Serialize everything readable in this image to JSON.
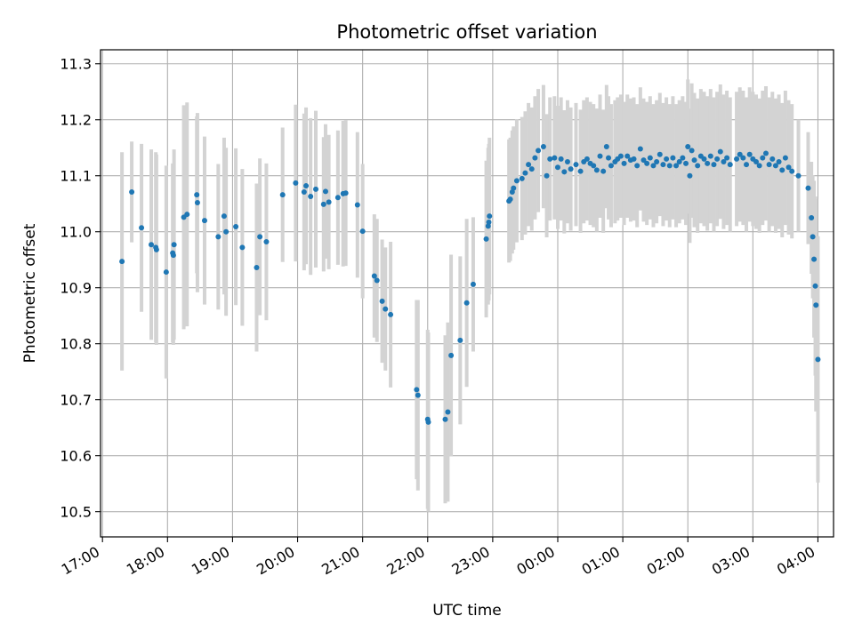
{
  "chart_data": {
    "type": "scatter",
    "title": "Photometric offset variation",
    "xlabel": "UTC time",
    "ylabel": "Photometric offset",
    "x_unit": "hours UTC (17.0 = 17:00, 24.0 = 00:00 next day, 28.0 = 04:00)",
    "xlim": [
      16.97,
      28.24
    ],
    "ylim": [
      10.455,
      11.325
    ],
    "grid": true,
    "x_ticks": [
      17,
      18,
      19,
      20,
      21,
      22,
      23,
      24,
      25,
      26,
      27,
      28
    ],
    "x_tick_labels": [
      "17:00",
      "18:00",
      "19:00",
      "20:00",
      "21:00",
      "22:00",
      "23:00",
      "00:00",
      "01:00",
      "02:00",
      "03:00",
      "04:00"
    ],
    "y_ticks": [
      10.5,
      10.6,
      10.7,
      10.8,
      10.9,
      11.0,
      11.1,
      11.2,
      11.3
    ],
    "y_tick_labels": [
      "10.5",
      "10.6",
      "10.7",
      "10.8",
      "10.9",
      "11.0",
      "11.1",
      "11.2",
      "11.3"
    ],
    "colors": {
      "points": "#1f77b4",
      "error_bars": "#d3d3d3",
      "grid": "#b0b0b0"
    },
    "series": [
      {
        "columns": [
          "x",
          "y",
          "y_error"
        ],
        "points": [
          [
            17.3,
            10.947,
            0.195
          ],
          [
            17.45,
            11.071,
            0.09
          ],
          [
            17.6,
            11.007,
            0.15
          ],
          [
            17.75,
            10.977,
            0.17
          ],
          [
            17.82,
            10.972,
            0.17
          ],
          [
            17.83,
            10.968,
            0.17
          ],
          [
            17.98,
            10.928,
            0.19
          ],
          [
            18.08,
            10.962,
            0.16
          ],
          [
            18.09,
            10.958,
            0.16
          ],
          [
            18.1,
            10.977,
            0.17
          ],
          [
            18.25,
            11.026,
            0.2
          ],
          [
            18.3,
            11.031,
            0.2
          ],
          [
            18.45,
            11.066,
            0.14
          ],
          [
            18.46,
            11.052,
            0.16
          ],
          [
            18.57,
            11.02,
            0.15
          ],
          [
            18.78,
            10.991,
            0.13
          ],
          [
            18.87,
            11.028,
            0.14
          ],
          [
            18.9,
            11.0,
            0.15
          ],
          [
            19.05,
            11.009,
            0.14
          ],
          [
            19.15,
            10.972,
            0.14
          ],
          [
            19.37,
            10.936,
            0.15
          ],
          [
            19.42,
            10.991,
            0.14
          ],
          [
            19.52,
            10.982,
            0.14
          ],
          [
            19.77,
            11.066,
            0.12
          ],
          [
            19.97,
            11.087,
            0.14
          ],
          [
            20.1,
            11.071,
            0.14
          ],
          [
            20.13,
            11.082,
            0.14
          ],
          [
            20.2,
            11.063,
            0.14
          ],
          [
            20.28,
            11.076,
            0.14
          ],
          [
            20.4,
            11.049,
            0.12
          ],
          [
            20.43,
            11.072,
            0.12
          ],
          [
            20.48,
            11.053,
            0.12
          ],
          [
            20.62,
            11.061,
            0.12
          ],
          [
            20.7,
            11.068,
            0.13
          ],
          [
            20.74,
            11.069,
            0.13
          ],
          [
            20.92,
            11.048,
            0.13
          ],
          [
            21.0,
            11.001,
            0.12
          ],
          [
            21.18,
            10.921,
            0.11
          ],
          [
            21.22,
            10.913,
            0.11
          ],
          [
            21.3,
            10.876,
            0.11
          ],
          [
            21.35,
            10.862,
            0.11
          ],
          [
            21.43,
            10.852,
            0.13
          ],
          [
            21.83,
            10.718,
            0.16
          ],
          [
            21.85,
            10.708,
            0.17
          ],
          [
            22.0,
            10.665,
            0.16
          ],
          [
            22.01,
            10.66,
            0.16
          ],
          [
            22.27,
            10.665,
            0.15
          ],
          [
            22.31,
            10.678,
            0.16
          ],
          [
            22.36,
            10.779,
            0.18
          ],
          [
            22.5,
            10.806,
            0.15
          ],
          [
            22.6,
            10.873,
            0.15
          ],
          [
            22.7,
            10.906,
            0.12
          ],
          [
            22.9,
            10.987,
            0.14
          ],
          [
            22.93,
            11.01,
            0.14
          ],
          [
            22.94,
            11.017,
            0.14
          ],
          [
            22.95,
            11.028,
            0.14
          ],
          [
            23.25,
            11.055,
            0.11
          ],
          [
            23.27,
            11.058,
            0.11
          ],
          [
            23.3,
            11.071,
            0.11
          ],
          [
            23.32,
            11.078,
            0.11
          ],
          [
            23.37,
            11.091,
            0.11
          ],
          [
            23.45,
            11.095,
            0.11
          ],
          [
            23.5,
            11.105,
            0.11
          ],
          [
            23.55,
            11.12,
            0.11
          ],
          [
            23.6,
            11.112,
            0.11
          ],
          [
            23.65,
            11.132,
            0.11
          ],
          [
            23.7,
            11.145,
            0.11
          ],
          [
            23.78,
            11.152,
            0.11
          ],
          [
            23.83,
            11.1,
            0.11
          ],
          [
            23.88,
            11.13,
            0.11
          ],
          [
            23.95,
            11.132,
            0.11
          ],
          [
            24.0,
            11.115,
            0.11
          ],
          [
            24.05,
            11.13,
            0.11
          ],
          [
            24.1,
            11.107,
            0.11
          ],
          [
            24.15,
            11.125,
            0.11
          ],
          [
            24.2,
            11.112,
            0.11
          ],
          [
            24.28,
            11.12,
            0.11
          ],
          [
            24.35,
            11.108,
            0.11
          ],
          [
            24.4,
            11.125,
            0.11
          ],
          [
            24.45,
            11.13,
            0.11
          ],
          [
            24.5,
            11.122,
            0.11
          ],
          [
            24.55,
            11.118,
            0.11
          ],
          [
            24.6,
            11.11,
            0.11
          ],
          [
            24.65,
            11.135,
            0.11
          ],
          [
            24.7,
            11.108,
            0.11
          ],
          [
            24.75,
            11.152,
            0.11
          ],
          [
            24.78,
            11.132,
            0.11
          ],
          [
            24.82,
            11.118,
            0.11
          ],
          [
            24.88,
            11.125,
            0.11
          ],
          [
            24.92,
            11.13,
            0.11
          ],
          [
            24.97,
            11.135,
            0.11
          ],
          [
            25.02,
            11.122,
            0.11
          ],
          [
            25.07,
            11.135,
            0.11
          ],
          [
            25.12,
            11.128,
            0.11
          ],
          [
            25.17,
            11.13,
            0.11
          ],
          [
            25.22,
            11.118,
            0.11
          ],
          [
            25.27,
            11.148,
            0.11
          ],
          [
            25.32,
            11.128,
            0.11
          ],
          [
            25.37,
            11.122,
            0.11
          ],
          [
            25.42,
            11.132,
            0.11
          ],
          [
            25.47,
            11.118,
            0.11
          ],
          [
            25.52,
            11.125,
            0.11
          ],
          [
            25.57,
            11.138,
            0.11
          ],
          [
            25.62,
            11.12,
            0.11
          ],
          [
            25.67,
            11.13,
            0.11
          ],
          [
            25.72,
            11.118,
            0.11
          ],
          [
            25.77,
            11.132,
            0.11
          ],
          [
            25.82,
            11.118,
            0.11
          ],
          [
            25.87,
            11.125,
            0.11
          ],
          [
            25.92,
            11.132,
            0.11
          ],
          [
            25.97,
            11.122,
            0.11
          ],
          [
            26.0,
            11.152,
            0.12
          ],
          [
            26.03,
            11.1,
            0.12
          ],
          [
            26.06,
            11.145,
            0.12
          ],
          [
            26.1,
            11.128,
            0.12
          ],
          [
            26.15,
            11.118,
            0.12
          ],
          [
            26.2,
            11.135,
            0.12
          ],
          [
            26.25,
            11.13,
            0.12
          ],
          [
            26.3,
            11.122,
            0.12
          ],
          [
            26.35,
            11.135,
            0.12
          ],
          [
            26.4,
            11.12,
            0.12
          ],
          [
            26.45,
            11.13,
            0.12
          ],
          [
            26.5,
            11.143,
            0.12
          ],
          [
            26.55,
            11.125,
            0.12
          ],
          [
            26.6,
            11.132,
            0.12
          ],
          [
            26.65,
            11.12,
            0.12
          ],
          [
            26.75,
            11.13,
            0.12
          ],
          [
            26.8,
            11.138,
            0.12
          ],
          [
            26.85,
            11.132,
            0.12
          ],
          [
            26.9,
            11.12,
            0.12
          ],
          [
            26.95,
            11.138,
            0.12
          ],
          [
            27.0,
            11.13,
            0.12
          ],
          [
            27.05,
            11.125,
            0.12
          ],
          [
            27.1,
            11.118,
            0.12
          ],
          [
            27.15,
            11.132,
            0.12
          ],
          [
            27.2,
            11.14,
            0.12
          ],
          [
            27.25,
            11.12,
            0.12
          ],
          [
            27.3,
            11.13,
            0.12
          ],
          [
            27.35,
            11.118,
            0.12
          ],
          [
            27.4,
            11.125,
            0.12
          ],
          [
            27.45,
            11.11,
            0.12
          ],
          [
            27.5,
            11.132,
            0.12
          ],
          [
            27.55,
            11.115,
            0.12
          ],
          [
            27.6,
            11.108,
            0.12
          ],
          [
            27.7,
            11.1,
            0.1
          ],
          [
            27.85,
            11.078,
            0.1
          ],
          [
            27.9,
            11.025,
            0.1
          ],
          [
            27.92,
            10.991,
            0.11
          ],
          [
            27.94,
            10.951,
            0.14
          ],
          [
            27.96,
            10.903,
            0.16
          ],
          [
            27.97,
            10.869,
            0.19
          ],
          [
            28.0,
            10.772,
            0.22
          ]
        ]
      }
    ]
  }
}
